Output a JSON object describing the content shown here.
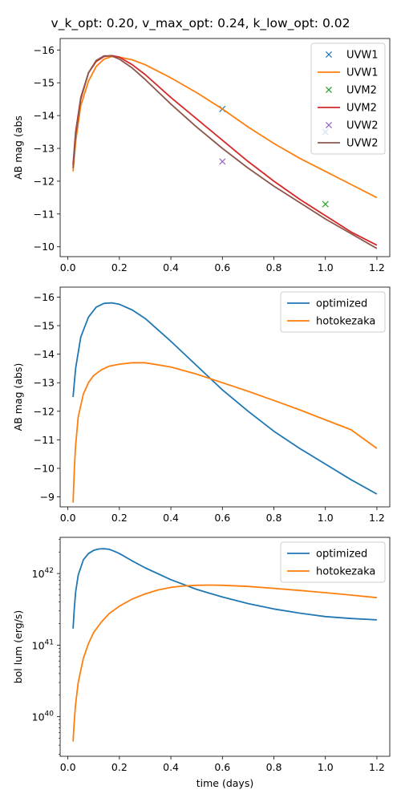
{
  "figure": {
    "title": "v_k_opt: 0.20, v_max_opt: 0.24, k_low_opt: 0.02"
  },
  "chart_data": [
    {
      "type": "line",
      "ylabel": "AB mag (abs",
      "xlabel": "",
      "xlim": [
        -0.03,
        1.25
      ],
      "ylim": [
        -9.7,
        -16.35
      ],
      "y_inverted": true,
      "xticks": [
        0.0,
        0.2,
        0.4,
        0.6,
        0.8,
        1.0,
        1.2
      ],
      "xtick_labels": [
        "0.0",
        "0.2",
        "0.4",
        "0.6",
        "0.8",
        "1.0",
        "1.2"
      ],
      "yticks": [
        -10,
        -11,
        -12,
        -13,
        -14,
        -15,
        -16
      ],
      "ytick_labels": [
        "−10",
        "−11",
        "−12",
        "−13",
        "−14",
        "−15",
        "−16"
      ],
      "legend_position": "top-right",
      "series": [
        {
          "name": "UVW1",
          "kind": "scatter",
          "marker": "x",
          "color": "#1f77b4",
          "x": [
            0.6,
            1.0
          ],
          "y": [
            -14.2,
            -13.5
          ]
        },
        {
          "name": "UVW1",
          "kind": "line",
          "color": "#ff7f0e",
          "x": [
            0.02,
            0.03,
            0.05,
            0.08,
            0.11,
            0.14,
            0.17,
            0.2,
            0.25,
            0.3,
            0.4,
            0.5,
            0.6,
            0.7,
            0.8,
            0.9,
            1.0,
            1.1,
            1.2
          ],
          "y": [
            -12.3,
            -13.2,
            -14.3,
            -15.05,
            -15.5,
            -15.72,
            -15.8,
            -15.78,
            -15.7,
            -15.55,
            -15.15,
            -14.7,
            -14.2,
            -13.65,
            -13.15,
            -12.7,
            -12.3,
            -11.9,
            -11.5
          ]
        },
        {
          "name": "UVM2",
          "kind": "scatter",
          "marker": "x",
          "color": "#2ca02c",
          "x": [
            1.0
          ],
          "y": [
            -11.3
          ]
        },
        {
          "name": "UVM2",
          "kind": "line",
          "color": "#d62728",
          "x": [
            0.02,
            0.03,
            0.05,
            0.08,
            0.11,
            0.14,
            0.17,
            0.2,
            0.25,
            0.3,
            0.4,
            0.5,
            0.6,
            0.7,
            0.8,
            0.9,
            1.0,
            1.1,
            1.2
          ],
          "y": [
            -12.5,
            -13.5,
            -14.55,
            -15.3,
            -15.65,
            -15.8,
            -15.83,
            -15.78,
            -15.55,
            -15.25,
            -14.55,
            -13.9,
            -13.25,
            -12.6,
            -12.0,
            -11.45,
            -10.95,
            -10.45,
            -10.05
          ]
        },
        {
          "name": "UVW2",
          "kind": "scatter",
          "marker": "x",
          "color": "#9467bd",
          "x": [
            0.6
          ],
          "y": [
            -12.6
          ]
        },
        {
          "name": "UVW2",
          "kind": "line",
          "color": "#8c564b",
          "x": [
            0.02,
            0.03,
            0.05,
            0.08,
            0.11,
            0.14,
            0.17,
            0.2,
            0.25,
            0.3,
            0.4,
            0.5,
            0.6,
            0.7,
            0.8,
            0.9,
            1.0,
            1.1,
            1.2
          ],
          "y": [
            -12.4,
            -13.4,
            -14.5,
            -15.3,
            -15.68,
            -15.82,
            -15.82,
            -15.72,
            -15.45,
            -15.1,
            -14.35,
            -13.65,
            -13.0,
            -12.4,
            -11.85,
            -11.35,
            -10.85,
            -10.4,
            -9.95
          ]
        }
      ]
    },
    {
      "type": "line",
      "ylabel": "AB mag (abs)",
      "xlabel": "",
      "xlim": [
        -0.03,
        1.25
      ],
      "ylim": [
        -8.65,
        -16.35
      ],
      "y_inverted": true,
      "xticks": [
        0.0,
        0.2,
        0.4,
        0.6,
        0.8,
        1.0,
        1.2
      ],
      "xtick_labels": [
        "0.0",
        "0.2",
        "0.4",
        "0.6",
        "0.8",
        "1.0",
        "1.2"
      ],
      "yticks": [
        -9,
        -10,
        -11,
        -12,
        -13,
        -14,
        -15,
        -16
      ],
      "ytick_labels": [
        "−9",
        "−10",
        "−11",
        "−12",
        "−13",
        "−14",
        "−15",
        "−16"
      ],
      "legend_position": "top-right",
      "series": [
        {
          "name": "optimized",
          "kind": "line",
          "color": "#1f77b4",
          "x": [
            0.02,
            0.03,
            0.05,
            0.08,
            0.11,
            0.14,
            0.17,
            0.2,
            0.25,
            0.3,
            0.4,
            0.5,
            0.6,
            0.7,
            0.8,
            0.9,
            1.0,
            1.1,
            1.2
          ],
          "y": [
            -12.5,
            -13.5,
            -14.6,
            -15.3,
            -15.65,
            -15.78,
            -15.8,
            -15.75,
            -15.55,
            -15.25,
            -14.45,
            -13.6,
            -12.75,
            -12.0,
            -11.3,
            -10.7,
            -10.15,
            -9.6,
            -9.1
          ]
        },
        {
          "name": "hotokezaka",
          "kind": "line",
          "color": "#ff7f0e",
          "x": [
            0.02,
            0.025,
            0.03,
            0.04,
            0.06,
            0.08,
            0.1,
            0.13,
            0.16,
            0.2,
            0.25,
            0.3,
            0.4,
            0.5,
            0.6,
            0.7,
            0.8,
            0.9,
            1.0,
            1.1,
            1.2
          ],
          "y": [
            -8.8,
            -10.0,
            -10.8,
            -11.8,
            -12.6,
            -13.0,
            -13.25,
            -13.45,
            -13.58,
            -13.65,
            -13.7,
            -13.7,
            -13.55,
            -13.3,
            -13.0,
            -12.7,
            -12.38,
            -12.05,
            -11.7,
            -11.35,
            -10.7
          ]
        }
      ]
    },
    {
      "type": "line",
      "ylabel": "bol lum (erg/s)",
      "xlabel": "time (days)",
      "xlim": [
        -0.03,
        1.25
      ],
      "ylim": [
        2.8e+39,
        3.2e+42
      ],
      "yscale": "log",
      "xticks": [
        0.0,
        0.2,
        0.4,
        0.6,
        0.8,
        1.0,
        1.2
      ],
      "xtick_labels": [
        "0.0",
        "0.2",
        "0.4",
        "0.6",
        "0.8",
        "1.0",
        "1.2"
      ],
      "yticks_major": [
        1e+40,
        1e+41,
        1e+42
      ],
      "ytick_bases": [
        "10",
        "10",
        "10"
      ],
      "ytick_exps": [
        "40",
        "41",
        "42"
      ],
      "legend_position": "top-right",
      "series": [
        {
          "name": "optimized",
          "kind": "line",
          "color": "#1f77b4",
          "x": [
            0.02,
            0.025,
            0.03,
            0.04,
            0.06,
            0.08,
            0.1,
            0.12,
            0.14,
            0.16,
            0.18,
            0.2,
            0.25,
            0.3,
            0.4,
            0.5,
            0.6,
            0.7,
            0.8,
            0.9,
            1.0,
            1.1,
            1.2
          ],
          "y": [
            1.7e+41,
            3.3e+41,
            5.5e+41,
            9.5e+41,
            1.55e+42,
            1.9e+42,
            2.1e+42,
            2.2e+42,
            2.22e+42,
            2.18e+42,
            2.05e+42,
            1.9e+42,
            1.5e+42,
            1.2e+42,
            8.2e+41,
            6e+41,
            4.7e+41,
            3.8e+41,
            3.2e+41,
            2.8e+41,
            2.5e+41,
            2.35e+41,
            2.25e+41
          ]
        },
        {
          "name": "hotokezaka",
          "kind": "line",
          "color": "#ff7f0e",
          "x": [
            0.02,
            0.025,
            0.03,
            0.04,
            0.06,
            0.08,
            0.1,
            0.13,
            0.16,
            0.2,
            0.25,
            0.3,
            0.35,
            0.4,
            0.45,
            0.5,
            0.55,
            0.6,
            0.7,
            0.8,
            0.9,
            1.0,
            1.1,
            1.2
          ],
          "y": [
            4.5e+39,
            9e+39,
            1.5e+40,
            3e+40,
            6.5e+40,
            1.05e+41,
            1.5e+41,
            2.1e+41,
            2.75e+41,
            3.5e+41,
            4.4e+41,
            5.2e+41,
            5.9e+41,
            6.4e+41,
            6.7e+41,
            6.85e+41,
            6.9e+41,
            6.85e+41,
            6.6e+41,
            6.2e+41,
            5.8e+41,
            5.4e+41,
            5e+41,
            4.6e+41
          ]
        }
      ]
    }
  ]
}
